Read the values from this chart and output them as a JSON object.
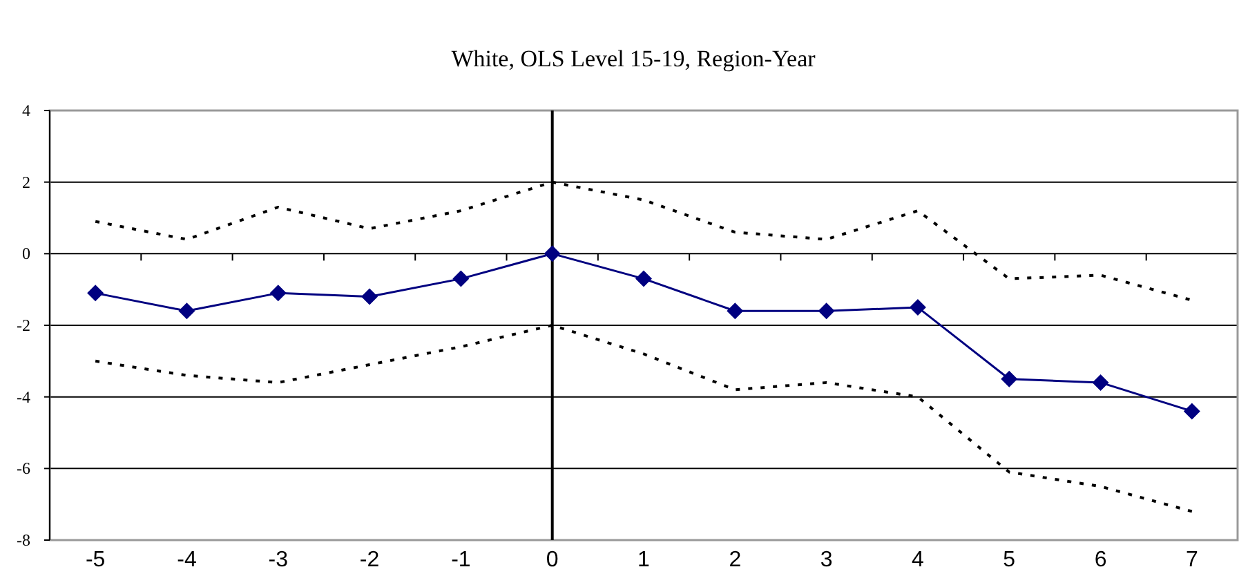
{
  "chart_data": {
    "type": "line",
    "title": "White, OLS Level 15-19, Region-Year",
    "x": [
      -5,
      -4,
      -3,
      -2,
      -1,
      0,
      1,
      2,
      3,
      4,
      5,
      6,
      7
    ],
    "xlim": [
      -5.5,
      7.5
    ],
    "xticks": [
      -5,
      -4,
      -3,
      -2,
      -1,
      0,
      1,
      2,
      3,
      4,
      5,
      6,
      7
    ],
    "ylim": [
      -8,
      4
    ],
    "yticks": [
      -8,
      -6,
      -4,
      -2,
      0,
      2,
      4
    ],
    "grid": "y",
    "series": [
      {
        "color": "#000000",
        "line_style": "dotted",
        "marker": "none",
        "values": [
          0.9,
          0.4,
          1.3,
          0.7,
          1.2,
          2.0,
          1.5,
          0.6,
          0.4,
          1.2,
          -0.7,
          -0.6,
          -1.3
        ]
      },
      {
        "color": "#000000",
        "line_style": "dotted",
        "marker": "none",
        "values": [
          -3.0,
          -3.4,
          -3.6,
          -3.1,
          -2.6,
          -2.0,
          -2.8,
          -3.8,
          -3.6,
          -4.0,
          -6.1,
          -6.5,
          -7.2
        ]
      },
      {
        "color": "#000080",
        "line_style": "solid",
        "marker": "diamond",
        "values": [
          -1.1,
          -1.6,
          -1.1,
          -1.2,
          -0.7,
          0.0,
          -0.7,
          -1.6,
          -1.6,
          -1.5,
          -3.5,
          -3.6,
          -4.4
        ]
      }
    ],
    "ref_lines": [
      {
        "axis": "x",
        "value": 0,
        "color": "#000000"
      }
    ]
  }
}
